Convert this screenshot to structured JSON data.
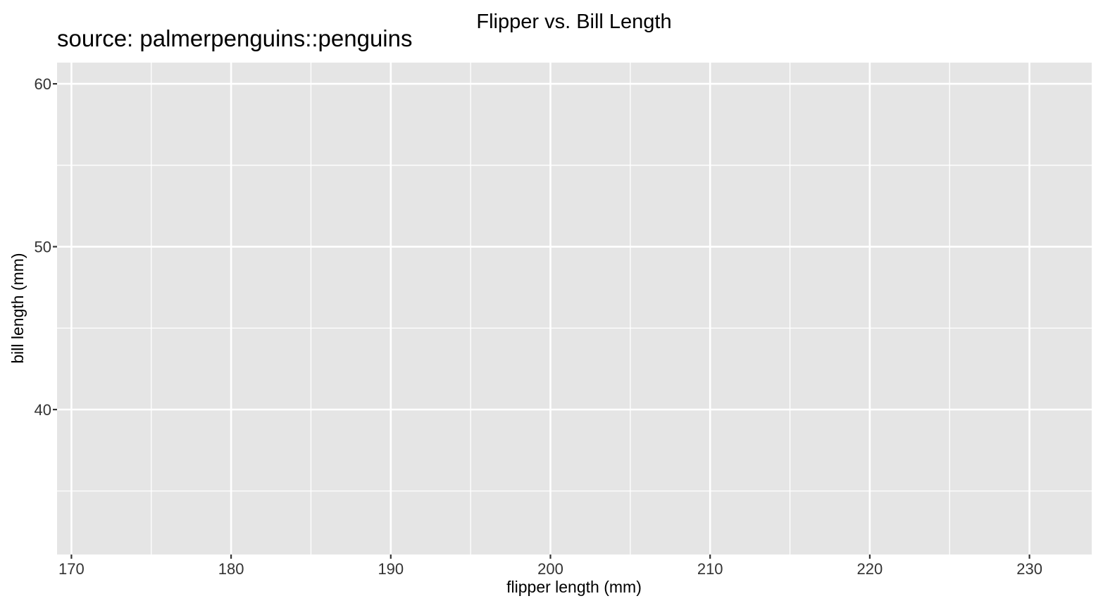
{
  "chart_data": {
    "type": "scatter",
    "title": "Flipper vs. Bill Length",
    "subtitle": "source: palmerpenguins::penguins",
    "xlabel": "flipper length (mm)",
    "ylabel": "bill length (mm)",
    "xlim": [
      169.1,
      233.9
    ],
    "ylim": [
      31.1,
      61.3
    ],
    "x_ticks": [
      170,
      180,
      190,
      200,
      210,
      220,
      230
    ],
    "x_tick_labels": [
      "170",
      "180",
      "190",
      "200",
      "210",
      "220",
      "230"
    ],
    "x_minor_ticks": [
      175,
      185,
      195,
      205,
      215,
      225
    ],
    "y_ticks": [
      40,
      50,
      60
    ],
    "y_tick_labels": [
      "40",
      "50",
      "60"
    ],
    "y_minor_ticks": [
      35,
      45,
      55
    ],
    "grid": true,
    "points": [],
    "colors": {
      "panel": "#e5e5e5",
      "grid": "#ffffff",
      "tick": "#333333"
    }
  }
}
